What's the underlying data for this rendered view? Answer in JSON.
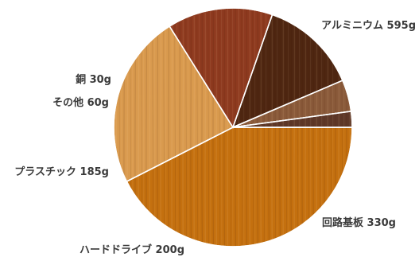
{
  "chart_data": {
    "type": "pie",
    "title": "",
    "legend": "none",
    "direction": "clockwise",
    "start_angle_deg": 0,
    "slices": [
      {
        "label": "アルミニウム",
        "value": 595,
        "unit": "g",
        "display": "アルミニウム 595g",
        "color": "#c4700f"
      },
      {
        "label": "回路基板",
        "value": 330,
        "unit": "g",
        "display": "回路基板 330g",
        "color": "#d99a4e"
      },
      {
        "label": "ハードドライブ",
        "value": 200,
        "unit": "g",
        "display": "ハードドライブ 200g",
        "color": "#8e3a1f"
      },
      {
        "label": "プラスチック",
        "value": 185,
        "unit": "g",
        "display": "プラスチック 185g",
        "color": "#4e2611"
      },
      {
        "label": "その他",
        "value": 60,
        "unit": "g",
        "display": "その他 60g",
        "color": "#8a5a3a"
      },
      {
        "label": "銅",
        "value": 30,
        "unit": "g",
        "display": "銅 30g",
        "color": "#5e3828"
      }
    ]
  }
}
